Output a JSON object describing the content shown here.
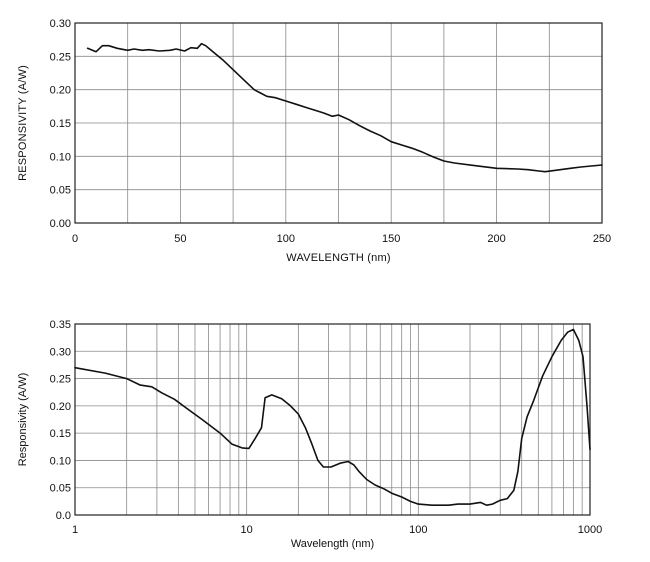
{
  "chart_data": [
    {
      "type": "line",
      "xlabel": "WAVELENGTH (nm)",
      "ylabel": "RESPONSIVITY (A/W)",
      "xscale": "linear",
      "xlim": [
        0,
        250
      ],
      "ylim": [
        0,
        0.3
      ],
      "grid": true,
      "xticks": [
        0,
        50,
        100,
        150,
        200,
        250
      ],
      "xtick_labels": [
        "0",
        "50",
        "100",
        "150",
        "200",
        "250"
      ],
      "yticks": [
        0,
        0.05,
        0.1,
        0.15,
        0.2,
        0.25,
        0.3
      ],
      "ytick_labels": [
        "0.00",
        "0.05",
        "0.10",
        "0.15",
        "0.20",
        "0.25",
        "0.30"
      ],
      "grid_x": [
        0,
        25,
        50,
        75,
        100,
        125,
        150,
        175,
        200,
        225,
        250
      ],
      "grid_y": [
        0,
        0.05,
        0.1,
        0.15,
        0.2,
        0.25,
        0.3
      ],
      "series": [
        {
          "x": [
            6,
            10,
            13,
            16,
            20,
            25,
            28,
            32,
            35,
            40,
            45,
            48,
            52,
            55,
            58,
            60,
            62,
            65,
            70,
            75,
            80,
            85,
            88,
            91,
            95,
            100,
            105,
            110,
            115,
            118,
            122,
            125,
            130,
            135,
            140,
            145,
            150,
            155,
            160,
            165,
            170,
            175,
            180,
            190,
            200,
            210,
            215,
            220,
            223,
            228,
            235,
            240,
            250
          ],
          "y": [
            0.262,
            0.257,
            0.266,
            0.266,
            0.262,
            0.259,
            0.261,
            0.259,
            0.26,
            0.258,
            0.259,
            0.261,
            0.258,
            0.263,
            0.262,
            0.269,
            0.266,
            0.258,
            0.245,
            0.23,
            0.215,
            0.2,
            0.195,
            0.19,
            0.188,
            0.183,
            0.178,
            0.173,
            0.168,
            0.165,
            0.16,
            0.162,
            0.155,
            0.146,
            0.138,
            0.131,
            0.122,
            0.117,
            0.112,
            0.106,
            0.099,
            0.093,
            0.09,
            0.086,
            0.082,
            0.081,
            0.08,
            0.078,
            0.077,
            0.079,
            0.082,
            0.084,
            0.087
          ]
        }
      ]
    },
    {
      "type": "line",
      "xlabel": "Wavelength (nm)",
      "ylabel": "Responsivity (A/W)",
      "xscale": "log",
      "xlim": [
        1,
        1000
      ],
      "ylim": [
        0,
        0.35
      ],
      "grid": true,
      "xticks": [
        1,
        10,
        100,
        1000
      ],
      "xtick_labels": [
        "1",
        "10",
        "100",
        "1000"
      ],
      "yticks": [
        0,
        0.05,
        0.1,
        0.15,
        0.2,
        0.25,
        0.3,
        0.35
      ],
      "ytick_labels": [
        "0.0",
        "0.05",
        "0.10",
        "0.15",
        "0.20",
        "0.25",
        "0.30",
        "0.35"
      ],
      "grid_x": [
        1,
        2,
        3,
        4,
        5,
        6,
        7,
        8,
        9,
        10,
        20,
        30,
        40,
        50,
        60,
        70,
        80,
        90,
        100,
        200,
        300,
        400,
        500,
        600,
        700,
        800,
        900,
        1000
      ],
      "grid_y": [
        0,
        0.05,
        0.1,
        0.15,
        0.2,
        0.25,
        0.3,
        0.35
      ],
      "series": [
        {
          "x": [
            1,
            1.5,
            2,
            2.4,
            2.8,
            3.2,
            3.8,
            4.5,
            5.5,
            7,
            8.2,
            9.4,
            10.3,
            11.2,
            12.2,
            12.8,
            14,
            16,
            18,
            20,
            22,
            24,
            26,
            28,
            31,
            35,
            39,
            42,
            45,
            50,
            56,
            63,
            70,
            80,
            90,
            100,
            120,
            150,
            170,
            200,
            230,
            250,
            270,
            300,
            330,
            360,
            380,
            400,
            430,
            470,
            530,
            600,
            680,
            740,
            800,
            860,
            910,
            960,
            1000
          ],
          "y": [
            0.27,
            0.26,
            0.25,
            0.238,
            0.235,
            0.224,
            0.212,
            0.195,
            0.175,
            0.15,
            0.13,
            0.123,
            0.122,
            0.14,
            0.16,
            0.215,
            0.22,
            0.213,
            0.2,
            0.185,
            0.16,
            0.13,
            0.1,
            0.088,
            0.088,
            0.095,
            0.098,
            0.092,
            0.08,
            0.065,
            0.055,
            0.048,
            0.04,
            0.033,
            0.025,
            0.02,
            0.018,
            0.018,
            0.02,
            0.02,
            0.023,
            0.018,
            0.02,
            0.027,
            0.03,
            0.045,
            0.08,
            0.14,
            0.18,
            0.21,
            0.255,
            0.29,
            0.32,
            0.335,
            0.34,
            0.32,
            0.29,
            0.2,
            0.12
          ]
        }
      ]
    }
  ]
}
